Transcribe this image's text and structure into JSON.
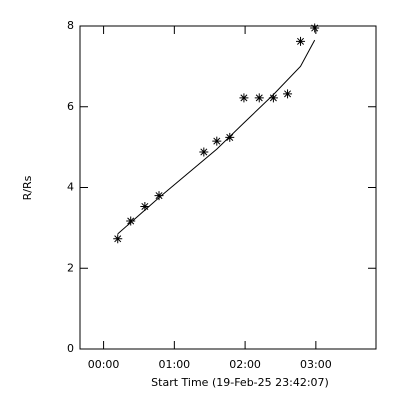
{
  "chart_data": {
    "type": "scatter",
    "xlabel": "Start Time (19-Feb-25 23:42:07)",
    "ylabel": "R/Rs",
    "xlim": [
      -20,
      231
    ],
    "ylim": [
      0,
      8
    ],
    "xticks": [
      {
        "value": 0,
        "label": "00:00"
      },
      {
        "value": 60,
        "label": "01:00"
      },
      {
        "value": 120,
        "label": "02:00"
      },
      {
        "value": 180,
        "label": "03:00"
      }
    ],
    "yticks": [
      0,
      2,
      4,
      6,
      8
    ],
    "series": [
      {
        "marker": "asterisk",
        "color": "#000000",
        "x": [
          12,
          23,
          35,
          47,
          85,
          96,
          107,
          119,
          132,
          144,
          156,
          167,
          179
        ],
        "values": [
          2.73,
          3.17,
          3.53,
          3.8,
          4.88,
          5.15,
          5.24,
          6.22,
          6.22,
          6.22,
          6.32,
          7.62,
          7.95
        ]
      },
      {
        "marker": "line",
        "color": "#000000",
        "x": [
          12,
          47,
          96,
          119,
          144,
          167,
          179
        ],
        "values": [
          2.85,
          3.75,
          4.95,
          5.6,
          6.3,
          7.0,
          7.65
        ]
      }
    ]
  }
}
